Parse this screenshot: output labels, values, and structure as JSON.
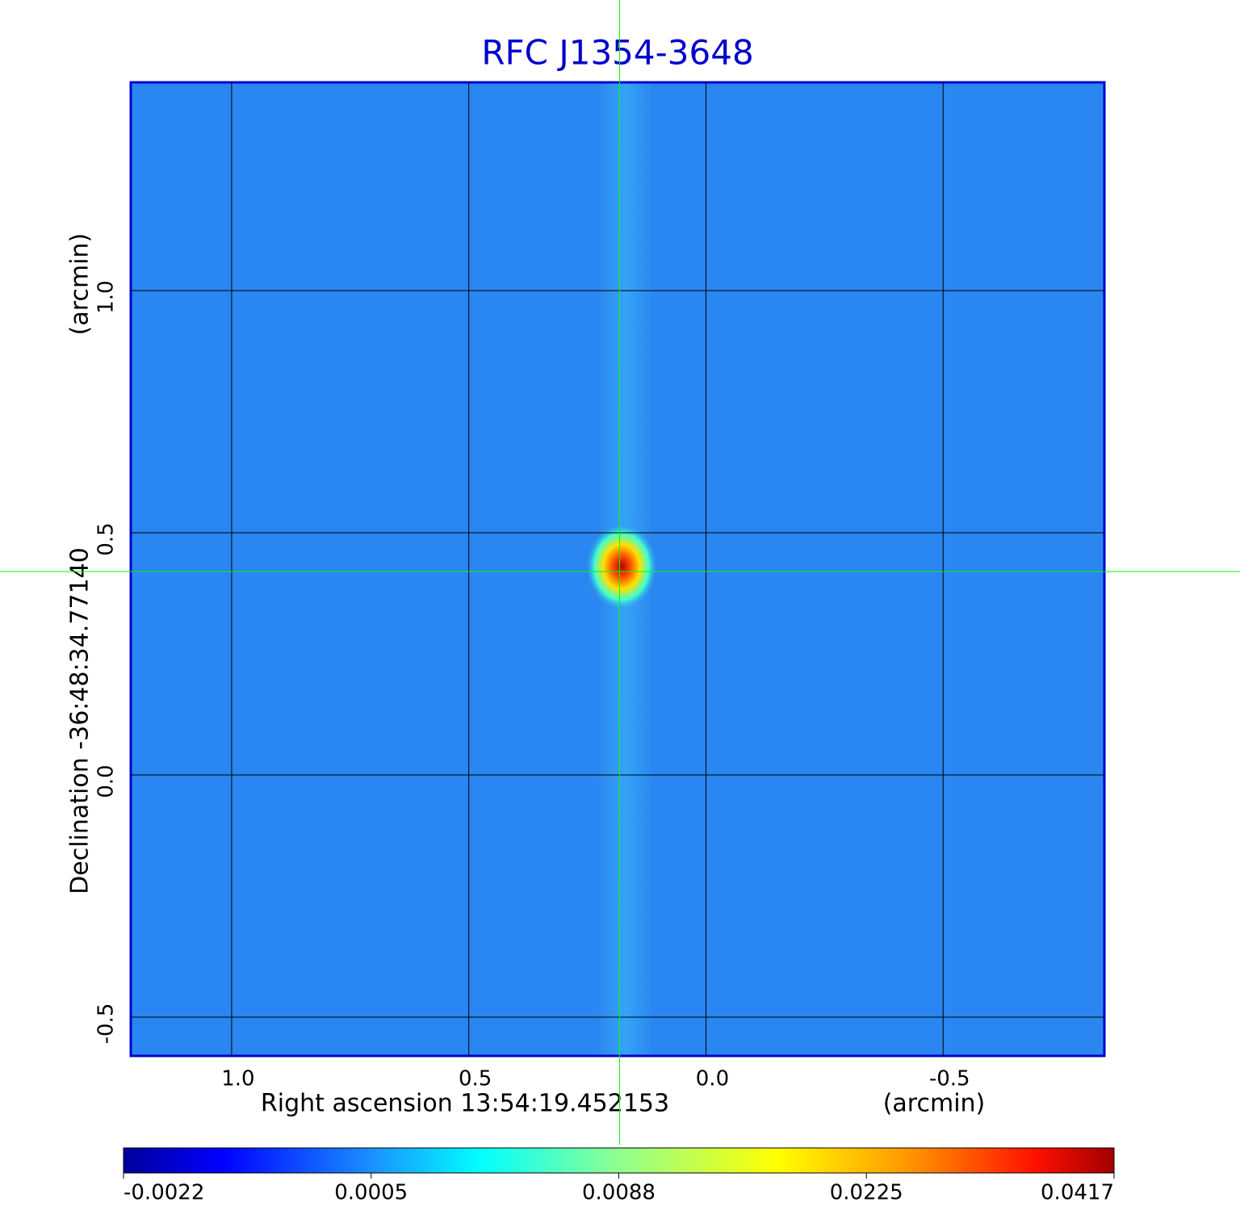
{
  "chart_data": {
    "type": "image",
    "title": "RFC J1354-3648",
    "x_label": "Right ascension  13:54:19.452153",
    "x_unit": "(arcmin)",
    "y_label": "Declination  -36:48:34.77140",
    "y_unit": "(arcmin)",
    "xlim": [
      1.2126,
      -0.84
    ],
    "ylim": [
      -0.58,
      1.43
    ],
    "xticks": [
      {
        "value": 1,
        "label": "1.0"
      },
      0.5,
      {
        "value": 0,
        "label": "0.0"
      },
      -0.5
    ],
    "yticks": [
      {
        "value": -0.5,
        "label": "-0.5"
      },
      {
        "value": 0,
        "label": "0.0"
      },
      0.5,
      {
        "value": 1,
        "label": "1.0"
      }
    ],
    "grid": true,
    "crosshair": {
      "x": 0.182,
      "y": 0.42,
      "color": "#00ff00"
    },
    "colorbar": {
      "ticks": [
        -0.0022,
        0.0005,
        0.0088,
        0.0225,
        0.0417
      ]
    }
  }
}
